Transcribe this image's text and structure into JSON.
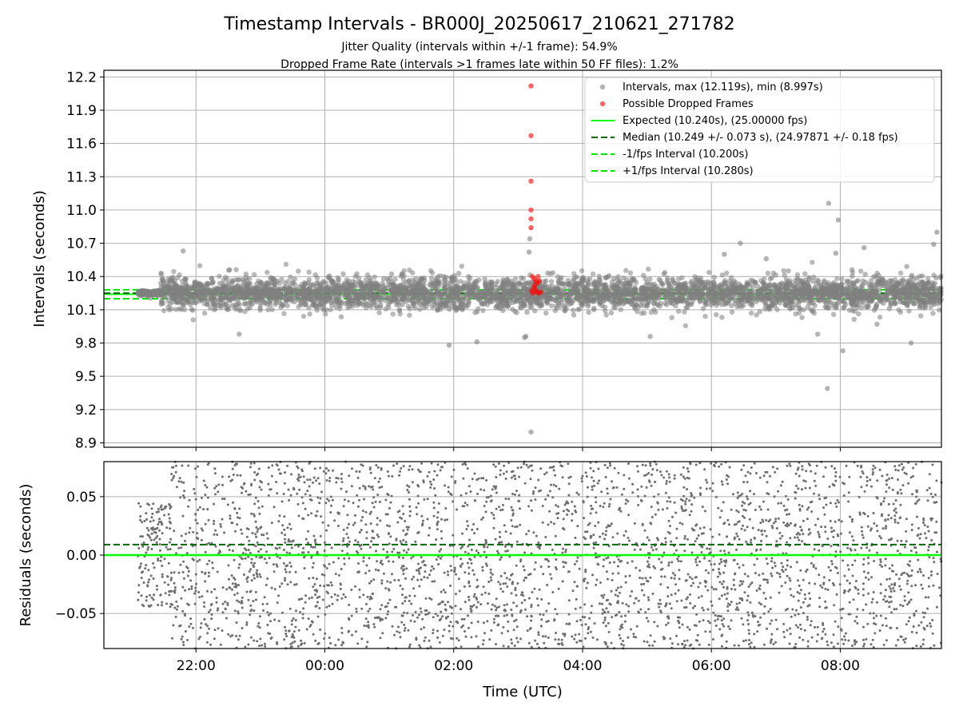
{
  "header": {
    "title": "Timestamp Intervals - BR000J_20250617_210621_271782",
    "subtitle_1": "Jitter Quality (intervals within +/-1 frame): 54.9%",
    "subtitle_2": "Dropped Frame Rate (intervals >1 frames late within 50 FF files): 1.2%"
  },
  "colors": {
    "intervals": "#808080",
    "dropped": "#ff0000",
    "expected": "#00ff00",
    "median": "#006400",
    "fps_interval": "#00e600",
    "grid": "#b0b0b0",
    "residuals": "#6e6e6e"
  },
  "chart_data": [
    {
      "type": "scatter",
      "name": "intervals-panel",
      "ylabel": "Intervals (seconds)",
      "xlabel": "",
      "ylim": [
        8.86,
        12.26
      ],
      "yticks": [
        8.9,
        9.2,
        9.5,
        9.8,
        10.1,
        10.4,
        10.7,
        11.0,
        11.3,
        11.6,
        11.9,
        12.2
      ],
      "ytick_labels": [
        "8.9",
        "9.2",
        "9.5",
        "9.8",
        "10.1",
        "10.4",
        "10.7",
        "11.0",
        "11.3",
        "11.6",
        "11.9",
        "12.2"
      ],
      "x_unit": "hours since 2025-06-17 00:00 UTC",
      "xlim": [
        20.57,
        33.57
      ],
      "xticks": [
        22,
        24,
        26,
        28,
        30,
        32
      ],
      "grid": true,
      "legend_position": "top-right",
      "legend": [
        "Intervals, max (12.119s), min (8.997s)",
        "Possible Dropped Frames",
        "Expected (10.240s), (25.00000 fps)",
        "Median (10.249 +/- 0.073 s), (24.97871 +/- 0.18 fps)",
        "-1/fps Interval (10.200s)",
        "+1/fps Interval (10.280s)"
      ],
      "expected": 10.24,
      "median": 10.249,
      "minus_interval": 10.2,
      "plus_interval": 10.28,
      "data_x_range": [
        21.1,
        33.57
      ],
      "series": [
        {
          "name": "Intervals",
          "kind": "dense-scatter",
          "center": 10.249,
          "std": 0.073,
          "count": 4200,
          "max": 12.119,
          "min": 8.997,
          "outliers": [
            {
              "x": 25.93,
              "y": 9.78
            },
            {
              "x": 26.36,
              "y": 9.81
            },
            {
              "x": 27.1,
              "y": 9.85
            },
            {
              "x": 27.12,
              "y": 9.86
            },
            {
              "x": 27.2,
              "y": 8.997
            },
            {
              "x": 27.18,
              "y": 10.74
            },
            {
              "x": 27.17,
              "y": 10.62
            },
            {
              "x": 30.45,
              "y": 10.7
            },
            {
              "x": 30.2,
              "y": 10.6
            },
            {
              "x": 30.85,
              "y": 10.56
            },
            {
              "x": 32.37,
              "y": 10.66
            },
            {
              "x": 33.5,
              "y": 10.8
            },
            {
              "x": 33.45,
              "y": 10.69
            },
            {
              "x": 31.82,
              "y": 11.06
            },
            {
              "x": 31.97,
              "y": 10.91
            },
            {
              "x": 31.8,
              "y": 9.39
            },
            {
              "x": 32.04,
              "y": 9.73
            },
            {
              "x": 33.1,
              "y": 9.8
            },
            {
              "x": 31.93,
              "y": 10.61
            },
            {
              "x": 21.8,
              "y": 10.63
            },
            {
              "x": 22.67,
              "y": 9.88
            },
            {
              "x": 29.05,
              "y": 9.86
            },
            {
              "x": 31.65,
              "y": 9.88
            },
            {
              "x": 32.57,
              "y": 9.97
            }
          ]
        },
        {
          "name": "Possible Dropped Frames",
          "points": [
            {
              "x": 27.2,
              "y": 12.119
            },
            {
              "x": 27.2,
              "y": 11.67
            },
            {
              "x": 27.2,
              "y": 11.26
            },
            {
              "x": 27.2,
              "y": 11.0
            },
            {
              "x": 27.2,
              "y": 10.92
            },
            {
              "x": 27.2,
              "y": 10.84
            },
            {
              "x": 27.22,
              "y": 10.4
            },
            {
              "x": 27.25,
              "y": 10.38
            },
            {
              "x": 27.28,
              "y": 10.36
            },
            {
              "x": 27.3,
              "y": 10.34
            },
            {
              "x": 27.26,
              "y": 10.32
            },
            {
              "x": 27.24,
              "y": 10.3
            },
            {
              "x": 27.27,
              "y": 10.28
            },
            {
              "x": 27.21,
              "y": 10.27
            },
            {
              "x": 27.29,
              "y": 10.26
            },
            {
              "x": 27.32,
              "y": 10.25
            },
            {
              "x": 27.23,
              "y": 10.25
            },
            {
              "x": 27.35,
              "y": 10.26
            },
            {
              "x": 27.31,
              "y": 10.4
            },
            {
              "x": 27.33,
              "y": 10.36
            }
          ]
        }
      ]
    },
    {
      "type": "scatter",
      "name": "residuals-panel",
      "ylabel": "Residuals (seconds)",
      "xlabel": "Time (UTC)",
      "ylim": [
        -0.08,
        0.08
      ],
      "yticks": [
        -0.05,
        0.0,
        0.05
      ],
      "ytick_labels": [
        "−0.05",
        "0.00",
        "0.05"
      ],
      "x_unit": "hours since 2025-06-17 00:00 UTC",
      "xlim": [
        20.57,
        33.57
      ],
      "xticks": [
        22,
        24,
        26,
        28,
        30,
        32
      ],
      "xtick_labels": [
        "22:00",
        "00:00",
        "02:00",
        "04:00",
        "06:00",
        "08:00"
      ],
      "grid": true,
      "zero_line": 0.0,
      "median_offset": 0.009,
      "series": [
        {
          "name": "Residuals",
          "kind": "dense-scatter",
          "count": 3400,
          "data_x_range": [
            21.1,
            33.57
          ],
          "early_window": {
            "x_end": 21.6,
            "half_range": 0.045
          }
        }
      ]
    }
  ]
}
